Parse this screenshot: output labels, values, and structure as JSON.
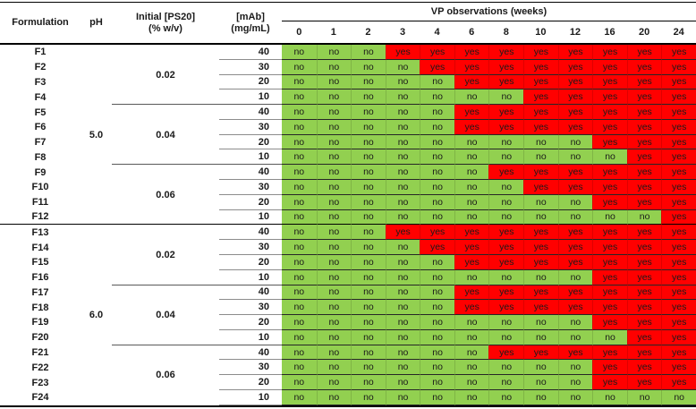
{
  "header": {
    "formulation": "Formulation",
    "ph": "pH",
    "ps20_label": "Initial [PS20]\n(% w/v)",
    "mab_label": "[mAb]\n(mg/mL)",
    "vp_title": "VP observations (weeks)",
    "weeks": [
      "0",
      "1",
      "2",
      "3",
      "4",
      "6",
      "8",
      "10",
      "12",
      "16",
      "20",
      "24"
    ]
  },
  "ph_groups": [
    {
      "label": "5.0",
      "start": 0,
      "end": 11
    },
    {
      "label": "6.0",
      "start": 12,
      "end": 23
    }
  ],
  "ps20_groups": [
    {
      "label": "0.02",
      "start": 0,
      "end": 3
    },
    {
      "label": "0.04",
      "start": 4,
      "end": 7
    },
    {
      "label": "0.06",
      "start": 8,
      "end": 11
    },
    {
      "label": "0.02",
      "start": 12,
      "end": 15
    },
    {
      "label": "0.04",
      "start": 16,
      "end": 19
    },
    {
      "label": "0.06",
      "start": 20,
      "end": 23
    }
  ],
  "rows": [
    {
      "formulation": "F1",
      "mab": "40",
      "obs": [
        "no",
        "no",
        "no",
        "yes",
        "yes",
        "yes",
        "yes",
        "yes",
        "yes",
        "yes",
        "yes",
        "yes"
      ]
    },
    {
      "formulation": "F2",
      "mab": "30",
      "obs": [
        "no",
        "no",
        "no",
        "no",
        "yes",
        "yes",
        "yes",
        "yes",
        "yes",
        "yes",
        "yes",
        "yes"
      ]
    },
    {
      "formulation": "F3",
      "mab": "20",
      "obs": [
        "no",
        "no",
        "no",
        "no",
        "no",
        "yes",
        "yes",
        "yes",
        "yes",
        "yes",
        "yes",
        "yes"
      ]
    },
    {
      "formulation": "F4",
      "mab": "10",
      "obs": [
        "no",
        "no",
        "no",
        "no",
        "no",
        "no",
        "no",
        "yes",
        "yes",
        "yes",
        "yes",
        "yes"
      ]
    },
    {
      "formulation": "F5",
      "mab": "40",
      "obs": [
        "no",
        "no",
        "no",
        "no",
        "no",
        "yes",
        "yes",
        "yes",
        "yes",
        "yes",
        "yes",
        "yes"
      ]
    },
    {
      "formulation": "F6",
      "mab": "30",
      "obs": [
        "no",
        "no",
        "no",
        "no",
        "no",
        "yes",
        "yes",
        "yes",
        "yes",
        "yes",
        "yes",
        "yes"
      ]
    },
    {
      "formulation": "F7",
      "mab": "20",
      "obs": [
        "no",
        "no",
        "no",
        "no",
        "no",
        "no",
        "no",
        "no",
        "no",
        "yes",
        "yes",
        "yes"
      ]
    },
    {
      "formulation": "F8",
      "mab": "10",
      "obs": [
        "no",
        "no",
        "no",
        "no",
        "no",
        "no",
        "no",
        "no",
        "no",
        "no",
        "yes",
        "yes"
      ]
    },
    {
      "formulation": "F9",
      "mab": "40",
      "obs": [
        "no",
        "no",
        "no",
        "no",
        "no",
        "no",
        "yes",
        "yes",
        "yes",
        "yes",
        "yes",
        "yes"
      ]
    },
    {
      "formulation": "F10",
      "mab": "30",
      "obs": [
        "no",
        "no",
        "no",
        "no",
        "no",
        "no",
        "no",
        "yes",
        "yes",
        "yes",
        "yes",
        "yes"
      ]
    },
    {
      "formulation": "F11",
      "mab": "20",
      "obs": [
        "no",
        "no",
        "no",
        "no",
        "no",
        "no",
        "no",
        "no",
        "no",
        "yes",
        "yes",
        "yes"
      ]
    },
    {
      "formulation": "F12",
      "mab": "10",
      "obs": [
        "no",
        "no",
        "no",
        "no",
        "no",
        "no",
        "no",
        "no",
        "no",
        "no",
        "no",
        "yes"
      ]
    },
    {
      "formulation": "F13",
      "mab": "40",
      "obs": [
        "no",
        "no",
        "no",
        "yes",
        "yes",
        "yes",
        "yes",
        "yes",
        "yes",
        "yes",
        "yes",
        "yes"
      ]
    },
    {
      "formulation": "F14",
      "mab": "30",
      "obs": [
        "no",
        "no",
        "no",
        "no",
        "yes",
        "yes",
        "yes",
        "yes",
        "yes",
        "yes",
        "yes",
        "yes"
      ]
    },
    {
      "formulation": "F15",
      "mab": "20",
      "obs": [
        "no",
        "no",
        "no",
        "no",
        "no",
        "yes",
        "yes",
        "yes",
        "yes",
        "yes",
        "yes",
        "yes"
      ]
    },
    {
      "formulation": "F16",
      "mab": "10",
      "obs": [
        "no",
        "no",
        "no",
        "no",
        "no",
        "no",
        "no",
        "no",
        "no",
        "yes",
        "yes",
        "yes"
      ]
    },
    {
      "formulation": "F17",
      "mab": "40",
      "obs": [
        "no",
        "no",
        "no",
        "no",
        "no",
        "yes",
        "yes",
        "yes",
        "yes",
        "yes",
        "yes",
        "yes"
      ]
    },
    {
      "formulation": "F18",
      "mab": "30",
      "obs": [
        "no",
        "no",
        "no",
        "no",
        "no",
        "yes",
        "yes",
        "yes",
        "yes",
        "yes",
        "yes",
        "yes"
      ]
    },
    {
      "formulation": "F19",
      "mab": "20",
      "obs": [
        "no",
        "no",
        "no",
        "no",
        "no",
        "no",
        "no",
        "no",
        "no",
        "yes",
        "yes",
        "yes"
      ]
    },
    {
      "formulation": "F20",
      "mab": "10",
      "obs": [
        "no",
        "no",
        "no",
        "no",
        "no",
        "no",
        "no",
        "no",
        "no",
        "no",
        "yes",
        "yes"
      ]
    },
    {
      "formulation": "F21",
      "mab": "40",
      "obs": [
        "no",
        "no",
        "no",
        "no",
        "no",
        "no",
        "yes",
        "yes",
        "yes",
        "yes",
        "yes",
        "yes"
      ]
    },
    {
      "formulation": "F22",
      "mab": "30",
      "obs": [
        "no",
        "no",
        "no",
        "no",
        "no",
        "no",
        "no",
        "no",
        "no",
        "yes",
        "yes",
        "yes"
      ]
    },
    {
      "formulation": "F23",
      "mab": "20",
      "obs": [
        "no",
        "no",
        "no",
        "no",
        "no",
        "no",
        "no",
        "no",
        "no",
        "yes",
        "yes",
        "yes"
      ]
    },
    {
      "formulation": "F24",
      "mab": "10",
      "obs": [
        "no",
        "no",
        "no",
        "no",
        "no",
        "no",
        "no",
        "no",
        "no",
        "no",
        "no",
        "no"
      ]
    }
  ],
  "colors": {
    "green": "#92D050",
    "red": "#FF0000"
  }
}
